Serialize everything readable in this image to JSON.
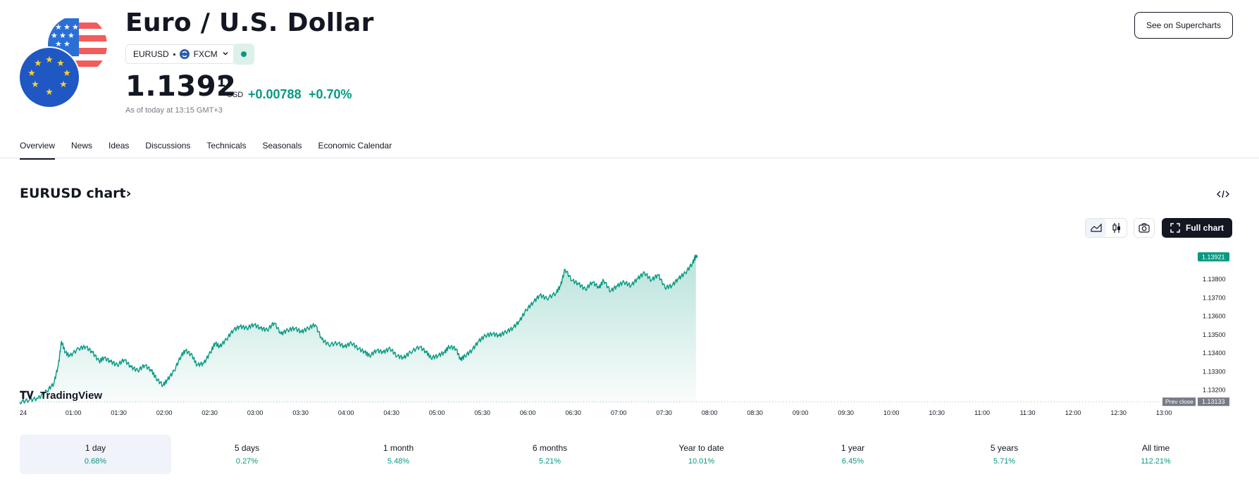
{
  "header": {
    "title": "Euro / U.S. Dollar",
    "symbol": "EURUSD",
    "broker": "FXCM",
    "supercharts_label": "See on Supercharts"
  },
  "quote": {
    "price_main": "1.1392",
    "price_sup": "1",
    "currency": "USD",
    "change_abs": "+0.00788",
    "change_pct": "+0.70%",
    "as_of": "As of today at 13:15 GMT+3",
    "status_color": "#089981"
  },
  "tabs": [
    {
      "label": "Overview"
    },
    {
      "label": "News"
    },
    {
      "label": "Ideas"
    },
    {
      "label": "Discussions"
    },
    {
      "label": "Technicals"
    },
    {
      "label": "Seasonals"
    },
    {
      "label": "Economic Calendar"
    }
  ],
  "chart_section": {
    "heading": "EURUSD chart",
    "heading_arrow": "›",
    "fullchart_label": "Full chart",
    "watermark": "TradingView"
  },
  "chart_data": {
    "type": "area",
    "x_labels": [
      "24",
      "01:00",
      "01:30",
      "02:00",
      "02:30",
      "03:00",
      "03:30",
      "04:00",
      "04:30",
      "05:00",
      "05:30",
      "06:00",
      "06:30",
      "07:00",
      "07:30",
      "08:00",
      "08:30",
      "09:00",
      "09:30",
      "10:00",
      "10:30",
      "11:00",
      "11:30",
      "12:00",
      "12:30",
      "13:00"
    ],
    "y_ticks": [
      "1.13800",
      "1.13700",
      "1.13600",
      "1.13500",
      "1.13400",
      "1.13300",
      "1.13200"
    ],
    "ylim": [
      1.1313,
      1.1393
    ],
    "last_price_label": "1.13921",
    "prev_close_label": "Prev close",
    "prev_close_value": "1.13133",
    "color_line": "#089981",
    "series": [
      {
        "values": [
          [
            0.0,
            1.1313
          ],
          [
            0.2,
            1.1314
          ],
          [
            0.4,
            1.1315
          ],
          [
            0.6,
            1.1319
          ],
          [
            0.75,
            1.1323
          ],
          [
            0.85,
            1.1333
          ],
          [
            0.92,
            1.1346
          ],
          [
            1.0,
            1.134
          ],
          [
            1.1,
            1.1338
          ],
          [
            1.3,
            1.1342
          ],
          [
            1.45,
            1.1343
          ],
          [
            1.6,
            1.134
          ],
          [
            1.75,
            1.1335
          ],
          [
            1.85,
            1.1337
          ],
          [
            2.0,
            1.1335
          ],
          [
            2.15,
            1.1333
          ],
          [
            2.3,
            1.1336
          ],
          [
            2.45,
            1.1332
          ],
          [
            2.6,
            1.133
          ],
          [
            2.75,
            1.1333
          ],
          [
            2.9,
            1.133
          ],
          [
            3.0,
            1.1326
          ],
          [
            3.15,
            1.1322
          ],
          [
            3.25,
            1.1325
          ],
          [
            3.4,
            1.133
          ],
          [
            3.55,
            1.1338
          ],
          [
            3.65,
            1.1341
          ],
          [
            3.8,
            1.1338
          ],
          [
            3.9,
            1.1333
          ],
          [
            4.05,
            1.1334
          ],
          [
            4.2,
            1.134
          ],
          [
            4.3,
            1.1345
          ],
          [
            4.4,
            1.1343
          ],
          [
            4.55,
            1.1347
          ],
          [
            4.7,
            1.1352
          ],
          [
            4.85,
            1.1354
          ],
          [
            5.0,
            1.1353
          ],
          [
            5.15,
            1.1355
          ],
          [
            5.3,
            1.1353
          ],
          [
            5.45,
            1.1352
          ],
          [
            5.6,
            1.1356
          ],
          [
            5.75,
            1.135
          ],
          [
            5.9,
            1.1352
          ],
          [
            6.05,
            1.1353
          ],
          [
            6.2,
            1.1351
          ],
          [
            6.35,
            1.1353
          ],
          [
            6.5,
            1.1355
          ],
          [
            6.65,
            1.1347
          ],
          [
            6.8,
            1.1344
          ],
          [
            7.0,
            1.1345
          ],
          [
            7.15,
            1.1343
          ],
          [
            7.3,
            1.1345
          ],
          [
            7.45,
            1.1342
          ],
          [
            7.6,
            1.134
          ],
          [
            7.7,
            1.1338
          ],
          [
            7.85,
            1.1341
          ],
          [
            8.0,
            1.134
          ],
          [
            8.15,
            1.1342
          ],
          [
            8.3,
            1.1338
          ],
          [
            8.45,
            1.1337
          ],
          [
            8.6,
            1.134
          ],
          [
            8.8,
            1.1343
          ],
          [
            8.95,
            1.134
          ],
          [
            9.05,
            1.1337
          ],
          [
            9.2,
            1.1338
          ],
          [
            9.35,
            1.134
          ],
          [
            9.45,
            1.1343
          ],
          [
            9.6,
            1.1342
          ],
          [
            9.7,
            1.1336
          ],
          [
            9.8,
            1.1338
          ],
          [
            9.95,
            1.1341
          ],
          [
            10.1,
            1.1346
          ],
          [
            10.25,
            1.1349
          ],
          [
            10.4,
            1.135
          ],
          [
            10.55,
            1.1349
          ],
          [
            10.7,
            1.1351
          ],
          [
            10.85,
            1.1353
          ],
          [
            11.0,
            1.1357
          ],
          [
            11.15,
            1.1363
          ],
          [
            11.3,
            1.1367
          ],
          [
            11.45,
            1.1371
          ],
          [
            11.6,
            1.1369
          ],
          [
            11.8,
            1.1372
          ],
          [
            11.9,
            1.1376
          ],
          [
            12.0,
            1.1385
          ],
          [
            12.15,
            1.1379
          ],
          [
            12.3,
            1.1377
          ],
          [
            12.45,
            1.1374
          ],
          [
            12.6,
            1.1378
          ],
          [
            12.75,
            1.1375
          ],
          [
            12.85,
            1.1379
          ],
          [
            13.0,
            1.1373
          ],
          [
            13.15,
            1.1376
          ],
          [
            13.3,
            1.1378
          ],
          [
            13.45,
            1.1376
          ],
          [
            13.6,
            1.138
          ],
          [
            13.75,
            1.1383
          ],
          [
            13.9,
            1.1379
          ],
          [
            14.05,
            1.1382
          ],
          [
            14.2,
            1.1375
          ],
          [
            14.35,
            1.1376
          ],
          [
            14.5,
            1.138
          ],
          [
            14.65,
            1.1383
          ],
          [
            14.8,
            1.1388
          ],
          [
            14.88,
            1.1392
          ]
        ]
      }
    ]
  },
  "periods": [
    {
      "label": "1 day",
      "value": "0.68%"
    },
    {
      "label": "5 days",
      "value": "0.27%"
    },
    {
      "label": "1 month",
      "value": "5.48%"
    },
    {
      "label": "6 months",
      "value": "5.21%"
    },
    {
      "label": "Year to date",
      "value": "10.01%"
    },
    {
      "label": "1 year",
      "value": "6.45%"
    },
    {
      "label": "5 years",
      "value": "5.71%"
    },
    {
      "label": "All time",
      "value": "112.21%"
    }
  ]
}
